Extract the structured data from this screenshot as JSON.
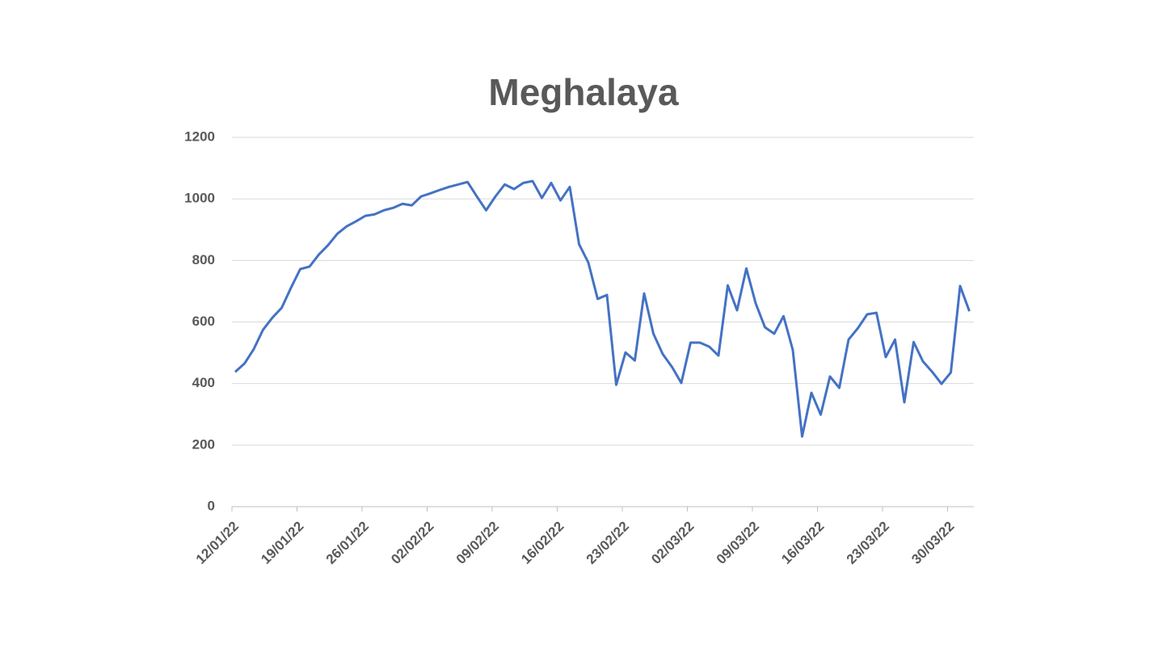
{
  "chart_data": {
    "type": "line",
    "title": "Meghalaya",
    "categories": [
      "12/01/22",
      null,
      null,
      null,
      null,
      null,
      null,
      "19/01/22",
      null,
      null,
      null,
      null,
      null,
      null,
      "26/01/22",
      null,
      null,
      null,
      null,
      null,
      null,
      "02/02/22",
      null,
      null,
      null,
      null,
      null,
      null,
      "09/02/22",
      null,
      null,
      null,
      null,
      null,
      null,
      "16/02/22",
      null,
      null,
      null,
      null,
      null,
      null,
      "23/02/22",
      null,
      null,
      null,
      null,
      null,
      null,
      "02/03/22",
      null,
      null,
      null,
      null,
      null,
      null,
      "09/03/22",
      null,
      null,
      null,
      null,
      null,
      null,
      "16/03/22",
      null,
      null,
      null,
      null,
      null,
      null,
      "23/03/22",
      null,
      null,
      null,
      null,
      null,
      null,
      "30/03/22",
      null,
      null
    ],
    "values": [
      438,
      465,
      512,
      575,
      614,
      646,
      711,
      772,
      780,
      819,
      850,
      887,
      911,
      927,
      945,
      950,
      963,
      971,
      984,
      979,
      1008,
      1018,
      1029,
      1039,
      1047,
      1055,
      1008,
      963,
      1008,
      1047,
      1032,
      1052,
      1058,
      1003,
      1052,
      995,
      1039,
      853,
      793,
      675,
      688,
      396,
      501,
      475,
      693,
      562,
      496,
      454,
      402,
      533,
      533,
      520,
      491,
      719,
      638,
      774,
      661,
      583,
      562,
      619,
      509,
      228,
      370,
      299,
      423,
      386,
      543,
      580,
      625,
      630,
      486,
      543,
      339,
      535,
      472,
      438,
      399,
      436,
      717,
      635
    ],
    "color": "#4472c4",
    "ylim": [
      0,
      1200
    ],
    "yticks": [
      0,
      200,
      400,
      600,
      800,
      1000,
      1200
    ],
    "grid": true
  }
}
